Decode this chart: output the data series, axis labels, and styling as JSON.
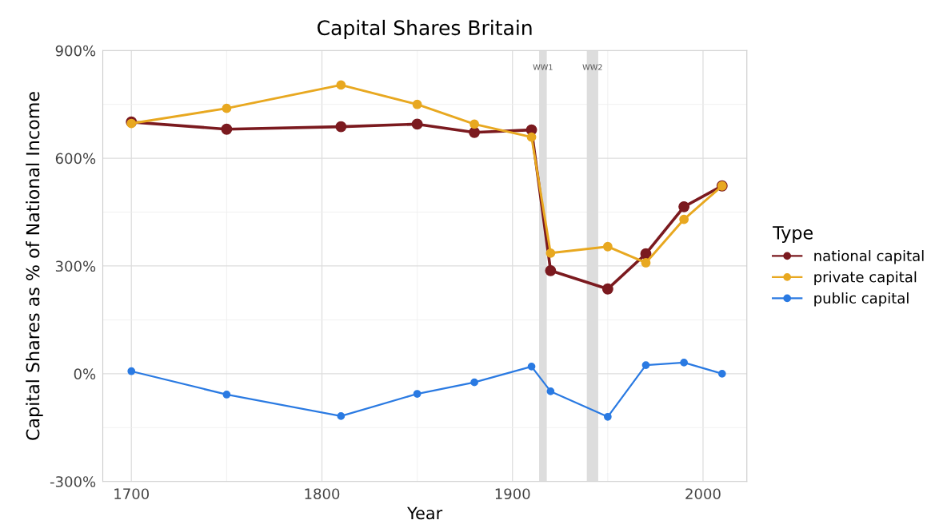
{
  "chart_data": {
    "type": "line",
    "title": "Capital Shares Britain",
    "xlabel": "Year",
    "ylabel": "Capital Shares as % of National Income",
    "legend_title": "Type",
    "x": [
      1700,
      1750,
      1810,
      1850,
      1880,
      1910,
      1920,
      1950,
      1970,
      1990,
      2010
    ],
    "series": [
      {
        "name": "national capital",
        "color": "#7b1a1f",
        "values": [
          701,
          681,
          688,
          695,
          672,
          679,
          287,
          236,
          334,
          465,
          523
        ]
      },
      {
        "name": "private capital",
        "color": "#e8a820",
        "values": [
          697,
          739,
          804,
          750,
          695,
          659,
          336,
          354,
          309,
          430,
          523
        ]
      },
      {
        "name": "public capital",
        "color": "#2a7ae2",
        "values": [
          7,
          -58,
          -118,
          -56,
          -24,
          20,
          -49,
          -120,
          24,
          31,
          0
        ]
      }
    ],
    "xlim": [
      1685,
      2023
    ],
    "xticks": [
      1700,
      1800,
      1900,
      2000
    ],
    "ylim": [
      -300,
      900
    ],
    "yticks": [
      {
        "value": -300,
        "label": "-300%"
      },
      {
        "value": 0,
        "label": "0%"
      },
      {
        "value": 300,
        "label": "300%"
      },
      {
        "value": 600,
        "label": "600%"
      },
      {
        "value": 900,
        "label": "900%"
      }
    ],
    "bands": [
      {
        "axis": "x",
        "from": 1914,
        "to": 1918,
        "label": "WW1",
        "color": "#dddddd"
      },
      {
        "axis": "x",
        "from": 1939,
        "to": 1945,
        "label": "WW2",
        "color": "#dddddd"
      }
    ],
    "grid": true,
    "legend": "right",
    "marker": "circle",
    "line_style": "solid"
  }
}
